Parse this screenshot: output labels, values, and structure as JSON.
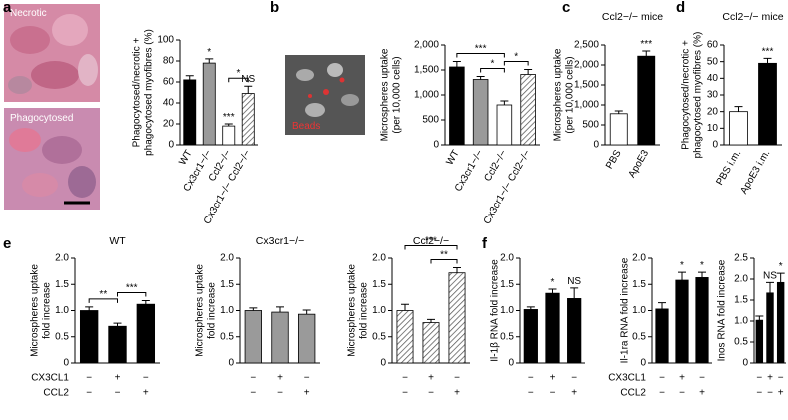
{
  "images": [
    {
      "label": "Necrotic"
    },
    {
      "label": "Phagocytosed"
    },
    {
      "label": "Beads"
    }
  ],
  "chart_data": [
    {
      "type": "bar",
      "panel": "a",
      "ylabel": [
        "Phagocytosed/necrotic +",
        "phagocytosed myofibres (%)"
      ],
      "categories": [
        "WT",
        "Cx3cr1−/−",
        "Ccl2−/−",
        "Cx3cr1−/− Ccl2−/−"
      ],
      "values": [
        62,
        78,
        18,
        49
      ],
      "errors": [
        4,
        4,
        2,
        7
      ],
      "bar_styles": [
        "black",
        "gray",
        "white",
        "hatched"
      ],
      "ylim": [
        0,
        100
      ],
      "yticks": [
        0,
        20,
        40,
        60,
        80,
        100
      ],
      "annotations": [
        {
          "text": "*",
          "bar": 1
        },
        {
          "text": "***",
          "bar": 2
        },
        {
          "text": "NS",
          "bar": 3
        },
        {
          "text": "*",
          "between": [
            2,
            3
          ]
        }
      ]
    },
    {
      "type": "bar",
      "panel": "b",
      "ylabel": [
        "Microspheres uptake",
        "(per 10,000 cells)"
      ],
      "categories": [
        "WT",
        "Cx3cr1−/−",
        "Ccl2−/−",
        "Cx3cr1−/− Ccl2−/−"
      ],
      "values": [
        1560,
        1310,
        800,
        1410
      ],
      "errors": [
        110,
        60,
        80,
        100
      ],
      "bar_styles": [
        "black",
        "gray",
        "white",
        "hatched"
      ],
      "ylim": [
        0,
        2000
      ],
      "yticks": [
        0,
        500,
        {
          "value": 1000,
          "label": "1,000"
        },
        {
          "value": 1500,
          "label": "1,500"
        },
        {
          "value": 2000,
          "label": "2,000"
        }
      ],
      "annotations": [
        {
          "text": "*",
          "between": [
            1,
            2
          ]
        },
        {
          "text": "*",
          "between": [
            2,
            3
          ]
        },
        {
          "text": "***",
          "between": [
            0,
            2
          ]
        }
      ]
    },
    {
      "type": "bar",
      "panel": "c",
      "title": "Ccl2−/− mice",
      "ylabel": [
        "Microspheres uptake",
        "(per 10,000 cells)"
      ],
      "categories": [
        "PBS",
        "ApoE3"
      ],
      "values": [
        780,
        2220
      ],
      "errors": [
        70,
        130
      ],
      "bar_styles": [
        "white",
        "black"
      ],
      "ylim": [
        0,
        2500
      ],
      "yticks": [
        0,
        500,
        {
          "value": 1000,
          "label": "1,000"
        },
        {
          "value": 1500,
          "label": "1,500"
        },
        {
          "value": 2000,
          "label": "2,000"
        },
        {
          "value": 2500,
          "label": "2,500"
        }
      ],
      "annotations": [
        {
          "text": "***",
          "bar": 1
        }
      ]
    },
    {
      "type": "bar",
      "panel": "d",
      "title": "Ccl2−/− mice",
      "ylabel": [
        "Phagocytosed/necrotic +",
        "phagocytosed myofibres (%)"
      ],
      "categories": [
        "PBS i.m.",
        "ApoE3 i.m."
      ],
      "values": [
        20,
        49
      ],
      "errors": [
        3,
        3
      ],
      "bar_styles": [
        "white",
        "black"
      ],
      "ylim": [
        0,
        60
      ],
      "yticks": [
        0,
        10,
        20,
        30,
        40,
        50,
        60
      ],
      "annotations": [
        {
          "text": "***",
          "bar": 1
        }
      ]
    },
    {
      "type": "bar",
      "panel": "e",
      "title": "WT",
      "ylabel": [
        "Microspheres uptake",
        "fold increase"
      ],
      "categories": [
        null,
        null,
        null
      ],
      "x_row_names": [
        "CX3CL1",
        "CCL2"
      ],
      "x_rows": [
        [
          "−",
          "+",
          "−"
        ],
        [
          "−",
          "−",
          "+"
        ]
      ],
      "values": [
        1.0,
        0.7,
        1.12
      ],
      "errors": [
        0.07,
        0.06,
        0.07
      ],
      "bar_styles": [
        "black",
        "black",
        "black"
      ],
      "ylim": [
        0,
        2
      ],
      "yticks": [
        0,
        0.5,
        {
          "value": 1,
          "label": "1.0"
        },
        1.5,
        {
          "value": 2,
          "label": "2.0"
        }
      ],
      "annotations": [
        {
          "text": "**",
          "between": [
            0,
            1
          ]
        },
        {
          "text": "***",
          "between": [
            1,
            2
          ]
        }
      ]
    },
    {
      "type": "bar",
      "title": "Cx3cr1−/−",
      "ylabel": [
        "Microspheres uptake",
        "fold increase"
      ],
      "categories": [
        null,
        null,
        null
      ],
      "x_rows": [
        [
          "−",
          "+",
          "−"
        ],
        [
          "−",
          "−",
          "+"
        ]
      ],
      "values": [
        1.0,
        0.97,
        0.93
      ],
      "errors": [
        0.05,
        0.1,
        0.08
      ],
      "bar_styles": [
        "gray",
        "gray",
        "gray"
      ],
      "ylim": [
        0,
        2
      ],
      "yticks": [
        0,
        0.5,
        {
          "value": 1,
          "label": "1.0"
        },
        1.5,
        {
          "value": 2,
          "label": "2.0"
        }
      ],
      "annotations": []
    },
    {
      "type": "bar",
      "title": "Ccl2−/−",
      "ylabel": [
        "Microspheres uptake",
        "fold increase"
      ],
      "categories": [
        null,
        null,
        null
      ],
      "x_rows": [
        [
          "−",
          "+",
          "−"
        ],
        [
          "−",
          "−",
          "+"
        ]
      ],
      "values": [
        1.0,
        0.77,
        1.72
      ],
      "errors": [
        0.12,
        0.06,
        0.1
      ],
      "bar_styles": [
        "hatched",
        "hatched",
        "hatched"
      ],
      "ylim": [
        0,
        2
      ],
      "yticks": [
        0,
        0.5,
        {
          "value": 1,
          "label": "1.0"
        },
        1.5,
        {
          "value": 2,
          "label": "2.0"
        }
      ],
      "annotations": [
        {
          "text": "**",
          "between": [
            1,
            2
          ]
        },
        {
          "text": "***",
          "between": [
            0,
            2
          ]
        }
      ]
    },
    {
      "type": "bar",
      "panel": "f",
      "ylabel": [
        "Il-1β RNA fold increase"
      ],
      "categories": [
        null,
        null,
        null
      ],
      "x_rows": [
        [
          "−",
          "+",
          "−"
        ],
        [
          "−",
          "−",
          "+"
        ]
      ],
      "values": [
        1.02,
        1.33,
        1.23
      ],
      "errors": [
        0.05,
        0.08,
        0.2
      ],
      "bar_styles": [
        "black",
        "black",
        "black"
      ],
      "ylim": [
        0,
        2
      ],
      "yticks": [
        0,
        0.5,
        {
          "value": 1,
          "label": "1.0"
        },
        1.5,
        {
          "value": 2,
          "label": "2.0"
        }
      ],
      "annotations": [
        {
          "text": "*",
          "bar": 1
        },
        {
          "text": "NS",
          "bar": 2
        }
      ]
    },
    {
      "type": "bar",
      "ylabel": [
        "Il-1ra RNA fold increase"
      ],
      "categories": [
        null,
        null,
        null
      ],
      "x_row_names": [
        "CX3CL1",
        "CCL2"
      ],
      "x_rows": [
        [
          "−",
          "+",
          "−"
        ],
        [
          "−",
          "−",
          "+"
        ]
      ],
      "values": [
        1.03,
        1.58,
        1.63
      ],
      "errors": [
        0.12,
        0.15,
        0.1
      ],
      "bar_styles": [
        "black",
        "black",
        "black"
      ],
      "ylim": [
        0,
        2
      ],
      "yticks": [
        0,
        0.5,
        {
          "value": 1,
          "label": "1.0"
        },
        1.5,
        {
          "value": 2,
          "label": "2.0"
        }
      ],
      "annotations": [
        {
          "text": "*",
          "bar": 1
        },
        {
          "text": "*",
          "bar": 2
        }
      ]
    },
    {
      "type": "bar",
      "ylabel": [
        "Inos RNA fold increase"
      ],
      "categories": [
        null,
        null,
        null
      ],
      "x_rows": [
        [
          "−",
          "+",
          "−"
        ],
        [
          "−",
          "−",
          "+"
        ]
      ],
      "values": [
        1.02,
        1.67,
        1.92
      ],
      "errors": [
        0.1,
        0.25,
        0.22
      ],
      "bar_styles": [
        "black",
        "black",
        "black"
      ],
      "ylim": [
        0,
        2.5
      ],
      "yticks": [
        0,
        0.5,
        {
          "value": 1,
          "label": "1.0"
        },
        1.5,
        {
          "value": 2,
          "label": "2.0"
        },
        2.5
      ],
      "annotations": [
        {
          "text": "NS",
          "bar": 1
        },
        {
          "text": "*",
          "bar": 2
        }
      ]
    }
  ]
}
